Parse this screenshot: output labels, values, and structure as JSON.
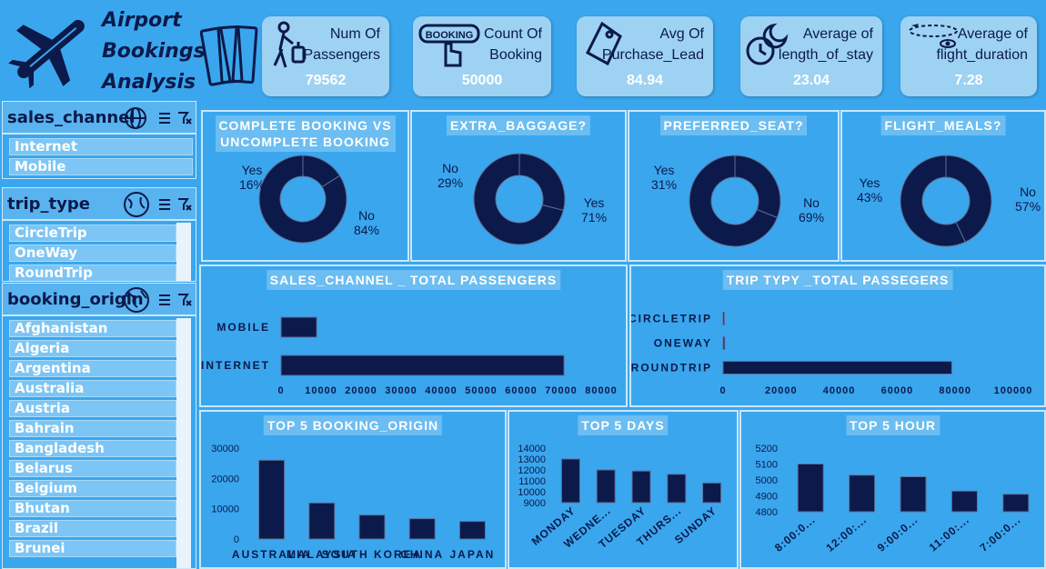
{
  "title": {
    "line1": "Airport",
    "line2": "Bookings",
    "line3": "Analysis"
  },
  "kpis": [
    {
      "label1": "Num Of",
      "label2": "Passengers",
      "value": "79562",
      "icon": "traveler-icon"
    },
    {
      "label1": "Count Of",
      "label2": "Booking",
      "value": "50000",
      "icon": "booking-button-icon",
      "icon_text": "BOOKING"
    },
    {
      "label1": "Avg Of",
      "label2": "Purchase_Lead",
      "value": "84.94",
      "icon": "price-tag-icon"
    },
    {
      "label1": "Average of",
      "label2": "length_of_stay",
      "value": "23.04",
      "icon": "clock-moon-icon"
    },
    {
      "label1": "Average of",
      "label2": "flight_duration",
      "value": "7.28",
      "icon": "flight-path-icon"
    }
  ],
  "slicers": {
    "sales_channel": {
      "title": "sales_channel",
      "items": [
        "Internet",
        "Mobile"
      ]
    },
    "trip_type": {
      "title": "trip_type",
      "items": [
        "CircleTrip",
        "OneWay",
        "RoundTrip"
      ]
    },
    "booking_origin": {
      "title": "booking_origin",
      "items": [
        "Afghanistan",
        "Algeria",
        "Argentina",
        "Australia",
        "Austria",
        "Bahrain",
        "Bangladesh",
        "Belarus",
        "Belgium",
        "Bhutan",
        "Brazil",
        "Brunei"
      ]
    }
  },
  "colors": {
    "background": "#3aa6ee",
    "dark": "#0b1a4a",
    "panel_title": "#6cbdf1",
    "kpi_card": "#9ed2f3"
  },
  "donuts": {
    "complete_booking": {
      "title1": "COMPLETE BOOKING VS",
      "title2": "UNCOMPLETE BOOKING",
      "yes_label": "Yes",
      "yes_pct": "16%",
      "no_label": "No",
      "no_pct": "84%"
    },
    "extra_baggage": {
      "title": "EXTRA_BAGGAGE?",
      "no_label": "No",
      "no_pct": "29%",
      "yes_label": "Yes",
      "yes_pct": "71%"
    },
    "preferred_seat": {
      "title": "PREFERRED_SEAT?",
      "yes_label": "Yes",
      "yes_pct": "31%",
      "no_label": "No",
      "no_pct": "69%"
    },
    "flight_meals": {
      "title": "FLIGHT_MEALS?",
      "yes_label": "Yes",
      "yes_pct": "43%",
      "no_label": "No",
      "no_pct": "57%"
    }
  },
  "chart_data": [
    {
      "type": "pie",
      "title": "COMPLETE BOOKING VS UNCOMPLETE BOOKING",
      "categories": [
        "Yes",
        "No"
      ],
      "values": [
        16,
        84
      ]
    },
    {
      "type": "pie",
      "title": "EXTRA_BAGGAGE?",
      "categories": [
        "No",
        "Yes"
      ],
      "values": [
        29,
        71
      ]
    },
    {
      "type": "pie",
      "title": "PREFERRED_SEAT?",
      "categories": [
        "Yes",
        "No"
      ],
      "values": [
        31,
        69
      ]
    },
    {
      "type": "pie",
      "title": "FLIGHT_MEALS?",
      "categories": [
        "Yes",
        "No"
      ],
      "values": [
        43,
        57
      ]
    },
    {
      "type": "bar",
      "orientation": "horizontal",
      "title": "SALES_CHANNEL _ TOTAL PASSENGERS",
      "categories": [
        "MOBILE",
        "INTERNET"
      ],
      "values": [
        8900,
        70700
      ],
      "xlim": [
        0,
        80000
      ],
      "ticks": [
        "0",
        "10000",
        "20000",
        "30000",
        "40000",
        "50000",
        "60000",
        "70000",
        "80000"
      ]
    },
    {
      "type": "bar",
      "orientation": "horizontal",
      "title": "TRIP TYPY _TOTAL PASSEGERS",
      "categories": [
        "CIRCLETRIP",
        "ONEWAY",
        "ROUNDTRIP"
      ],
      "values": [
        180,
        560,
        78800
      ],
      "xlim": [
        0,
        100000
      ],
      "ticks": [
        "0",
        "20000",
        "40000",
        "60000",
        "80000",
        "100000"
      ]
    },
    {
      "type": "bar",
      "title": "TOP 5 BOOKING_ORIGIN",
      "categories": [
        "AUSTRALIA",
        "MALAYSIA",
        "SOUTH KOREA",
        "CHINA",
        "JAPAN"
      ],
      "values": [
        26000,
        11900,
        7900,
        6700,
        5800
      ],
      "ylim": [
        0,
        30000
      ],
      "ticks": [
        "0",
        "10000",
        "20000",
        "30000"
      ]
    },
    {
      "type": "bar",
      "title": "TOP 5 DAYS",
      "categories": [
        "MONDAY",
        "WEDNE...",
        "TUESDAY",
        "THURS...",
        "SUNDAY"
      ],
      "values": [
        13000,
        12000,
        11900,
        11600,
        10800
      ],
      "ylim": [
        9000,
        14000
      ],
      "ticks": [
        "9000",
        "10000",
        "11000",
        "12000",
        "13000",
        "14000"
      ]
    },
    {
      "type": "bar",
      "title": "TOP 5 HOUR",
      "categories": [
        "8:00:0...",
        "12:00:...",
        "9:00:0...",
        "11:00:...",
        "7:00:0..."
      ],
      "values": [
        5100,
        5030,
        5020,
        4930,
        4910
      ],
      "ylim": [
        4800,
        5200
      ],
      "ticks": [
        "4800",
        "4900",
        "5000",
        "5100",
        "5200"
      ]
    }
  ]
}
